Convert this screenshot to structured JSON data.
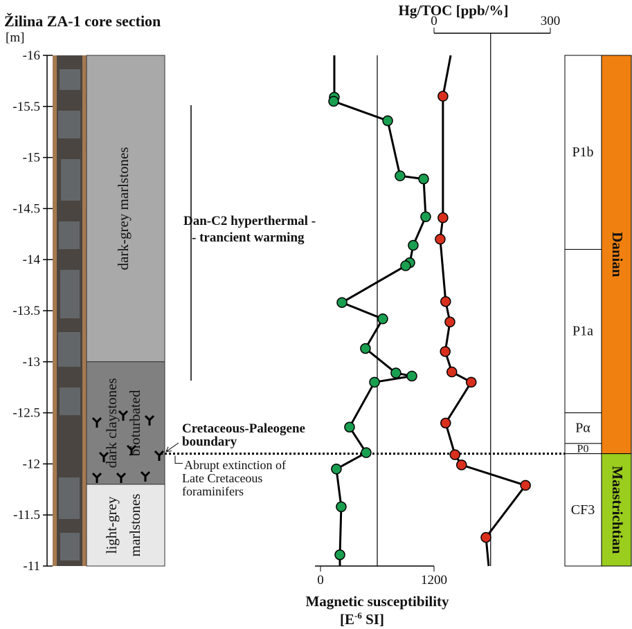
{
  "chart_data": {
    "type": "well-log",
    "title": "Žilina ZA-1 core section",
    "y_unit": "[m]",
    "ylim": [
      -16,
      -11
    ],
    "yticks": [
      -16,
      -15.5,
      -15,
      -14.5,
      -14,
      -13.5,
      -13,
      -12.5,
      -12,
      -11.5,
      -11
    ],
    "xlim": [
      0,
      1200
    ],
    "xticks": [
      0,
      1200
    ],
    "x_label": "Magnetic susceptibility",
    "x_unit": {
      "base": "[E",
      "sup": "-6",
      "rest": " SI]"
    },
    "x2lim": [
      0,
      300
    ],
    "x2ticks": [
      0,
      300
    ],
    "x2_label": "Hg/TOC [ppb/%]",
    "series": [
      {
        "color": "#1a9e50",
        "axis": "x",
        "reference": 600,
        "depth": [
          -16,
          -15.59,
          -15.55,
          -15.36,
          -14.82,
          -14.79,
          -14.42,
          -14.14,
          -13.97,
          -13.94,
          -13.58,
          -13.42,
          -13.13,
          -12.89,
          -12.86,
          -12.8,
          -12.36,
          -12.11,
          -11.95,
          -11.58,
          -11.11,
          -11
        ],
        "values": [
          146,
          146,
          139,
          710,
          841,
          1090,
          1112,
          980,
          944,
          900,
          227,
          658,
          475,
          797,
          966,
          571,
          307,
          483,
          168,
          219,
          205,
          205
        ]
      },
      {
        "color": "#d9301e",
        "axis": "x2",
        "reference": 146,
        "depth": [
          -16,
          -15.6,
          -14.41,
          -14.2,
          -13.59,
          -13.39,
          -13.1,
          -12.9,
          -12.8,
          -12.4,
          -12.09,
          -11.99,
          -11.79,
          -11.28,
          -11
        ],
        "values": [
          43,
          23,
          23,
          16,
          30,
          41,
          29,
          46,
          96,
          30,
          54,
          71,
          236,
          134,
          141
        ]
      }
    ],
    "lithology": [
      {
        "lines": [
          "dark-grey marlstones"
        ],
        "top": -16,
        "bottom": -13,
        "color": "#a9a9a9"
      },
      {
        "lines": [
          "dark claystones",
          "bioturbated"
        ],
        "top": -13,
        "bottom": -11.8,
        "color": "#808080"
      },
      {
        "lines": [
          "light-grey",
          "marlstones"
        ],
        "top": -11.8,
        "bottom": -11,
        "color": "#e8e8e8"
      }
    ],
    "zones": [
      {
        "label": "P1b",
        "top": -16,
        "bottom": -14.1
      },
      {
        "label": "P1a",
        "top": -14.1,
        "bottom": -12.5
      },
      {
        "label": "Pα",
        "top": -12.5,
        "bottom": -12.2
      },
      {
        "label": "P0",
        "top": -12.2,
        "bottom": -12.1
      },
      {
        "label": "CF3",
        "top": -12.1,
        "bottom": -11
      }
    ],
    "stages": [
      {
        "label": "Danian",
        "top": -16,
        "bottom": -12.1,
        "color": "#f08010"
      },
      {
        "label": "Maastrichtian",
        "top": -12.1,
        "bottom": -11,
        "color": "#9acd1e"
      }
    ],
    "boundary_depth": -12.1,
    "annotations": {
      "hyperthermal": [
        "Dan-C2 hyperthermal -",
        "- trancient warming"
      ],
      "boundary": [
        "Cretaceous-Paleogene",
        "boundary"
      ],
      "extinction": [
        "Abrupt extinction of",
        "Late Cretaceous",
        "foraminifers"
      ]
    }
  }
}
